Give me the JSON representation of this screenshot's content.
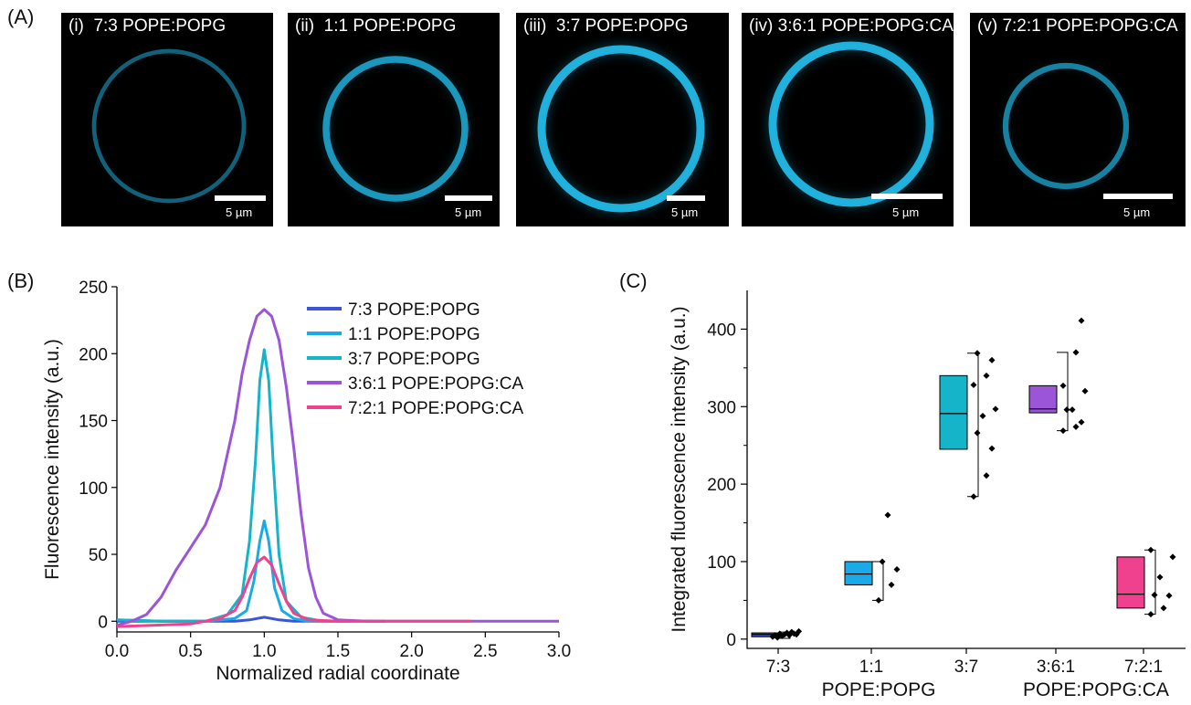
{
  "panels": {
    "a": "(A)",
    "b": "(B)",
    "c": "(C)"
  },
  "micrographs": [
    {
      "numeral": "(i)",
      "label": "7:3 POPE:POPG",
      "scale": "5 µm",
      "intensity": 0.28
    },
    {
      "numeral": "(ii)",
      "label": "1:1 POPE:POPG",
      "scale": "5 µm",
      "intensity": 0.75
    },
    {
      "numeral": "(iii)",
      "label": "3:7 POPE:POPG",
      "scale": "5 µm",
      "intensity": 1.0
    },
    {
      "numeral": "(iv)",
      "label": "3:6:1 POPE:POPG:CA",
      "scale": "5 µm",
      "intensity": 1.0
    },
    {
      "numeral": "(v)",
      "label": "7:2:1 POPE:POPG:CA",
      "scale": "5 µm",
      "intensity": 0.55
    }
  ],
  "chart_data": [
    {
      "type": "line",
      "xlabel": "Normalized radial coordinate",
      "ylabel": "Fluorescence intensity (a.u.)",
      "xlim": [
        0,
        3
      ],
      "ylim": [
        -8,
        250
      ],
      "xticks": [
        "0.0",
        "0.5",
        "1.0",
        "1.5",
        "2.0",
        "2.5",
        "3.0"
      ],
      "yticks": [
        "0",
        "50",
        "100",
        "150",
        "200",
        "250"
      ],
      "legend": "top-right",
      "series": [
        {
          "name": "7:3 POPE:POPG",
          "color": "#3b55d6",
          "x": [
            0,
            0.5,
            0.8,
            0.9,
            0.95,
            1.0,
            1.05,
            1.1,
            1.2,
            1.5,
            1.82
          ],
          "y": [
            0,
            0,
            0,
            1,
            2,
            3,
            2,
            1,
            0,
            0,
            0
          ]
        },
        {
          "name": "1:1 POPE:POPG",
          "color": "#1aaae8",
          "x": [
            0,
            0.3,
            0.6,
            0.8,
            0.88,
            0.93,
            0.97,
            1.0,
            1.03,
            1.07,
            1.12,
            1.2,
            1.3,
            1.5
          ],
          "y": [
            1,
            0,
            0,
            2,
            8,
            30,
            60,
            75,
            60,
            25,
            8,
            2,
            0,
            0
          ]
        },
        {
          "name": "3:7 POPE:POPG",
          "color": "#16b4c8",
          "x": [
            0,
            0.3,
            0.6,
            0.75,
            0.85,
            0.9,
            0.94,
            0.97,
            1.0,
            1.03,
            1.06,
            1.1,
            1.15,
            1.25,
            1.4,
            1.6
          ],
          "y": [
            1,
            0,
            0,
            5,
            20,
            60,
            120,
            180,
            203,
            180,
            120,
            50,
            15,
            3,
            0,
            0
          ]
        },
        {
          "name": "3:6:1 POPE:POPG:CA",
          "color": "#9b55d9",
          "x": [
            0,
            0.1,
            0.2,
            0.3,
            0.4,
            0.5,
            0.6,
            0.7,
            0.8,
            0.85,
            0.9,
            0.95,
            1.0,
            1.05,
            1.1,
            1.15,
            1.2,
            1.25,
            1.3,
            1.35,
            1.4,
            1.5,
            1.7,
            2.0,
            2.4,
            3.0
          ],
          "y": [
            -3,
            0,
            5,
            18,
            38,
            55,
            72,
            100,
            150,
            185,
            210,
            228,
            233,
            228,
            210,
            175,
            130,
            80,
            40,
            18,
            6,
            1,
            0,
            0,
            0,
            0
          ]
        },
        {
          "name": "7:2:1 POPE:POPG:CA",
          "color": "#f0418f",
          "x": [
            0,
            0.5,
            0.7,
            0.8,
            0.85,
            0.9,
            0.95,
            1.0,
            1.05,
            1.1,
            1.15,
            1.2,
            1.3,
            1.5,
            1.8,
            2.4
          ],
          "y": [
            -4,
            -2,
            2,
            8,
            18,
            32,
            44,
            48,
            42,
            28,
            15,
            6,
            1,
            0,
            0,
            0
          ]
        }
      ]
    },
    {
      "type": "box",
      "ylabel": "Integrated fluorescence intensity (a.u.)",
      "ylim": [
        -12,
        450
      ],
      "yticks": [
        "0",
        "100",
        "200",
        "300",
        "400"
      ],
      "categories": [
        "7:3",
        "1:1",
        "3:7",
        "3:6:1",
        "7:2:1"
      ],
      "group_labels": [
        "POPE:POPG",
        "POPE:POPG:CA"
      ],
      "boxes": [
        {
          "category": "7:3",
          "color": "#3b55d6",
          "q1": 3,
          "median": 6,
          "q3": 8,
          "whisker_low": 1,
          "whisker_high": 9,
          "points": [
            3,
            5,
            2,
            7,
            4,
            6,
            8,
            5,
            9,
            7,
            6,
            10
          ]
        },
        {
          "category": "1:1",
          "color": "#1aaae8",
          "q1": 70,
          "median": 84,
          "q3": 100,
          "whisker_low": 50,
          "whisker_high": 100,
          "points": [
            50,
            70,
            90,
            100,
            160
          ]
        },
        {
          "category": "3:7",
          "color": "#16b4c8",
          "q1": 245,
          "median": 291,
          "q3": 340,
          "whisker_low": 184,
          "whisker_high": 369,
          "points": [
            184,
            211,
            246,
            266,
            288,
            297,
            328,
            340,
            360,
            369
          ]
        },
        {
          "category": "3:6:1",
          "color": "#9b55d9",
          "q1": 292,
          "median": 297,
          "q3": 327,
          "whisker_low": 269,
          "whisker_high": 370,
          "points": [
            269,
            274,
            280,
            296,
            296,
            320,
            327,
            370,
            411
          ]
        },
        {
          "category": "7:2:1",
          "color": "#f0418f",
          "q1": 40,
          "median": 58,
          "q3": 106,
          "whisker_low": 32,
          "whisker_high": 115,
          "points": [
            32,
            40,
            56,
            57,
            80,
            106,
            115
          ]
        }
      ]
    }
  ]
}
